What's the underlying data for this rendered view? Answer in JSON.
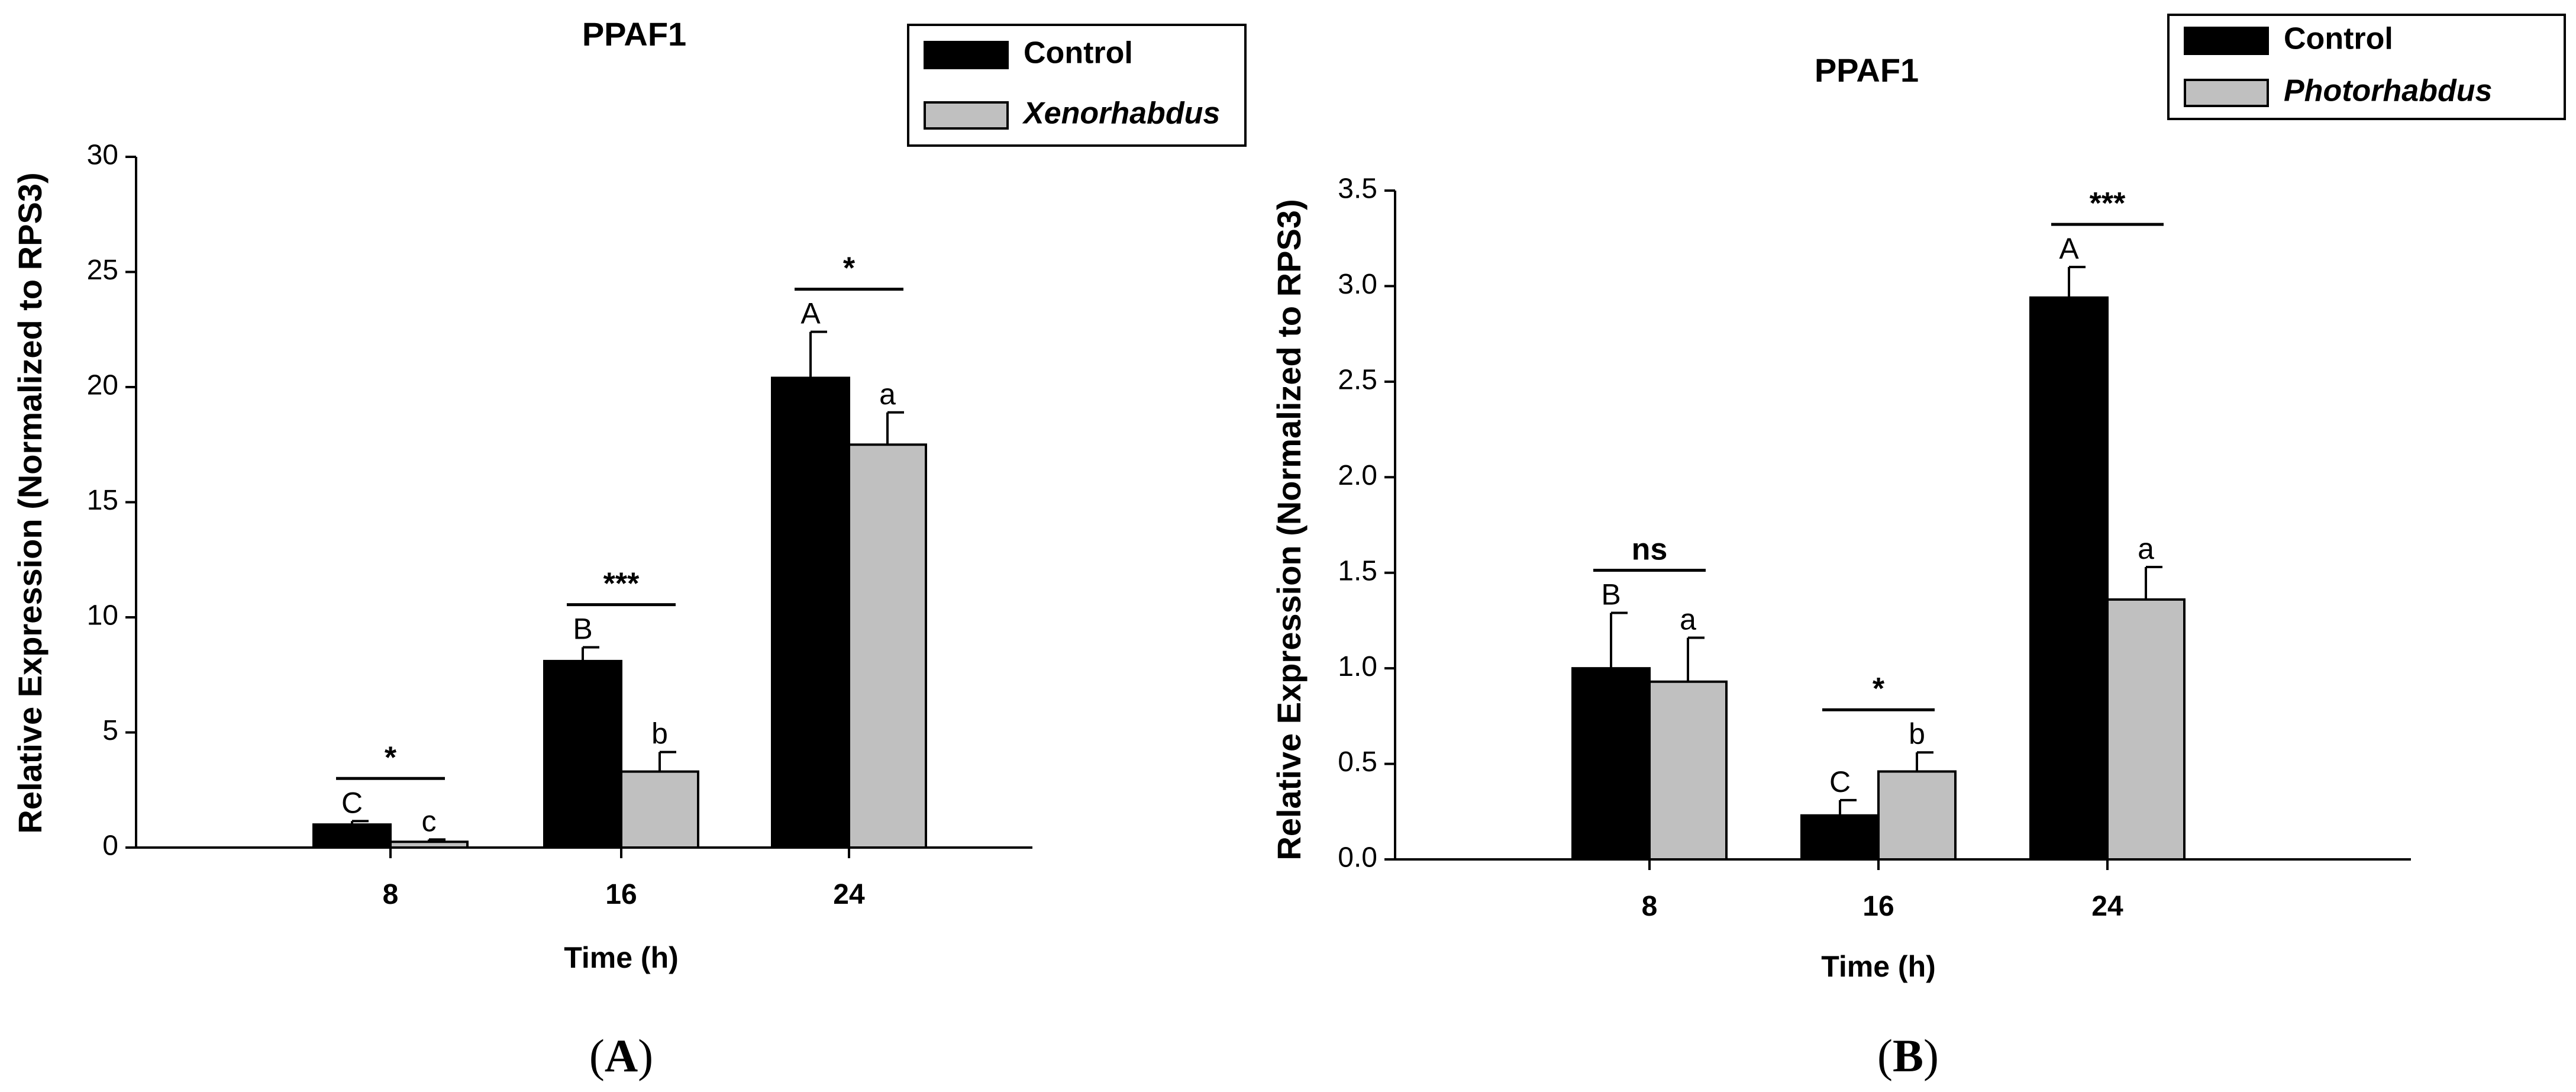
{
  "figure": {
    "panel_labels": [
      "A",
      "B"
    ],
    "panel_label_parts": [
      "(",
      ")"
    ]
  },
  "chart_data": [
    {
      "type": "bar",
      "panel": "A",
      "title": "PPAF1",
      "xlabel": "Time (h)",
      "ylabel": "Relative Expression (Normalized to RPS3)",
      "categories": [
        "8",
        "16",
        "24"
      ],
      "ylim": [
        0,
        30
      ],
      "yticks": [
        "0",
        "5",
        "10",
        "15",
        "20",
        "25",
        "30"
      ],
      "grid": false,
      "legend_position": "top-right",
      "series": [
        {
          "name": "Control",
          "color": "#000000",
          "italic": false,
          "values": [
            1.0,
            8.1,
            20.4
          ],
          "errors": [
            0.15,
            0.6,
            2.0
          ],
          "letters": [
            "C",
            "B",
            "A"
          ]
        },
        {
          "name": "Xenorhabdus",
          "color": "#c0c0c0",
          "italic": true,
          "values": [
            0.25,
            3.3,
            17.5
          ],
          "errors": [
            0.1,
            0.85,
            1.4
          ],
          "letters": [
            "c",
            "b",
            "a"
          ]
        }
      ],
      "significance": [
        "*",
        "***",
        "*"
      ]
    },
    {
      "type": "bar",
      "panel": "B",
      "title": "PPAF1",
      "xlabel": "Time (h)",
      "ylabel": "Relative Expression (Normalized to RPS3)",
      "categories": [
        "8",
        "16",
        "24"
      ],
      "ylim": [
        0,
        3.5
      ],
      "yticks": [
        "0.0",
        "0.5",
        "1.0",
        "1.5",
        "2.0",
        "2.5",
        "3.0",
        "3.5"
      ],
      "grid": false,
      "legend_position": "top-right",
      "series": [
        {
          "name": "Control",
          "color": "#000000",
          "italic": false,
          "values": [
            1.0,
            0.23,
            2.94
          ],
          "errors": [
            0.29,
            0.08,
            0.16
          ],
          "letters": [
            "B",
            "C",
            "A"
          ]
        },
        {
          "name": "Photorhabdus",
          "color": "#c0c0c0",
          "italic": true,
          "values": [
            0.93,
            0.46,
            1.36
          ],
          "errors": [
            0.23,
            0.1,
            0.17
          ],
          "letters": [
            "a",
            "b",
            "a"
          ]
        }
      ],
      "significance": [
        "ns",
        "*",
        "***"
      ]
    }
  ]
}
